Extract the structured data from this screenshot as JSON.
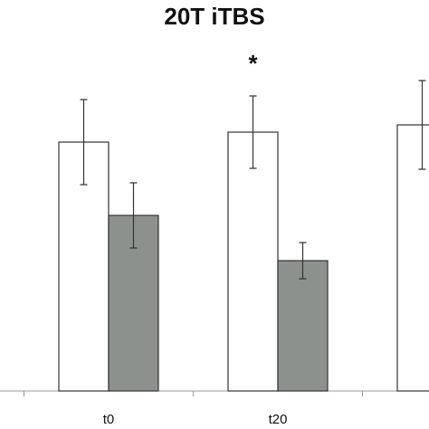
{
  "chart_data": {
    "type": "bar",
    "title": "20T iTBS",
    "categories": [
      "t0",
      "t20",
      null
    ],
    "series": [
      {
        "color": "#ffffff",
        "values": [
          275,
          286,
          294
        ],
        "errors": [
          47,
          40,
          49
        ]
      },
      {
        "color": "#8c918e",
        "values": [
          194,
          144,
          null
        ],
        "errors": [
          36,
          20,
          null
        ]
      }
    ],
    "annotations": [
      {
        "text": "*",
        "category": 1
      }
    ],
    "ylim": [
      0,
      300
    ]
  }
}
